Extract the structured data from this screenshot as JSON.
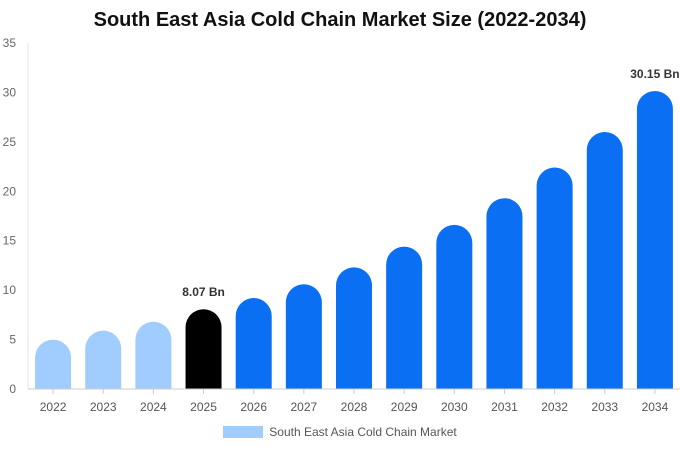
{
  "chart_data": {
    "type": "bar",
    "title": "South East Asia Cold Chain Market Size (2022-2034)",
    "categories": [
      "2022",
      "2023",
      "2024",
      "2025",
      "2026",
      "2027",
      "2028",
      "2029",
      "2030",
      "2031",
      "2032",
      "2033",
      "2034"
    ],
    "series": [
      {
        "name": "South East Asia Cold Chain Market",
        "values": [
          5.0,
          5.9,
          6.8,
          8.07,
          9.2,
          10.6,
          12.3,
          14.4,
          16.6,
          19.3,
          22.4,
          26.0,
          30.15
        ]
      }
    ],
    "ylim": [
      0,
      35
    ],
    "yticks": [
      0,
      5,
      10,
      15,
      20,
      25,
      30,
      35
    ],
    "data_labels": [
      {
        "category": "2025",
        "text": "8.07 Bn"
      },
      {
        "category": "2034",
        "text": "30.15 Bn"
      }
    ],
    "bar_colors": {
      "past": "#a0cdfd",
      "current": "#000000",
      "forecast": "#0a6ff3"
    },
    "highlight_category": "2025",
    "legend": {
      "position": "bottom",
      "color": "#a0cdfd"
    },
    "grid": false
  }
}
